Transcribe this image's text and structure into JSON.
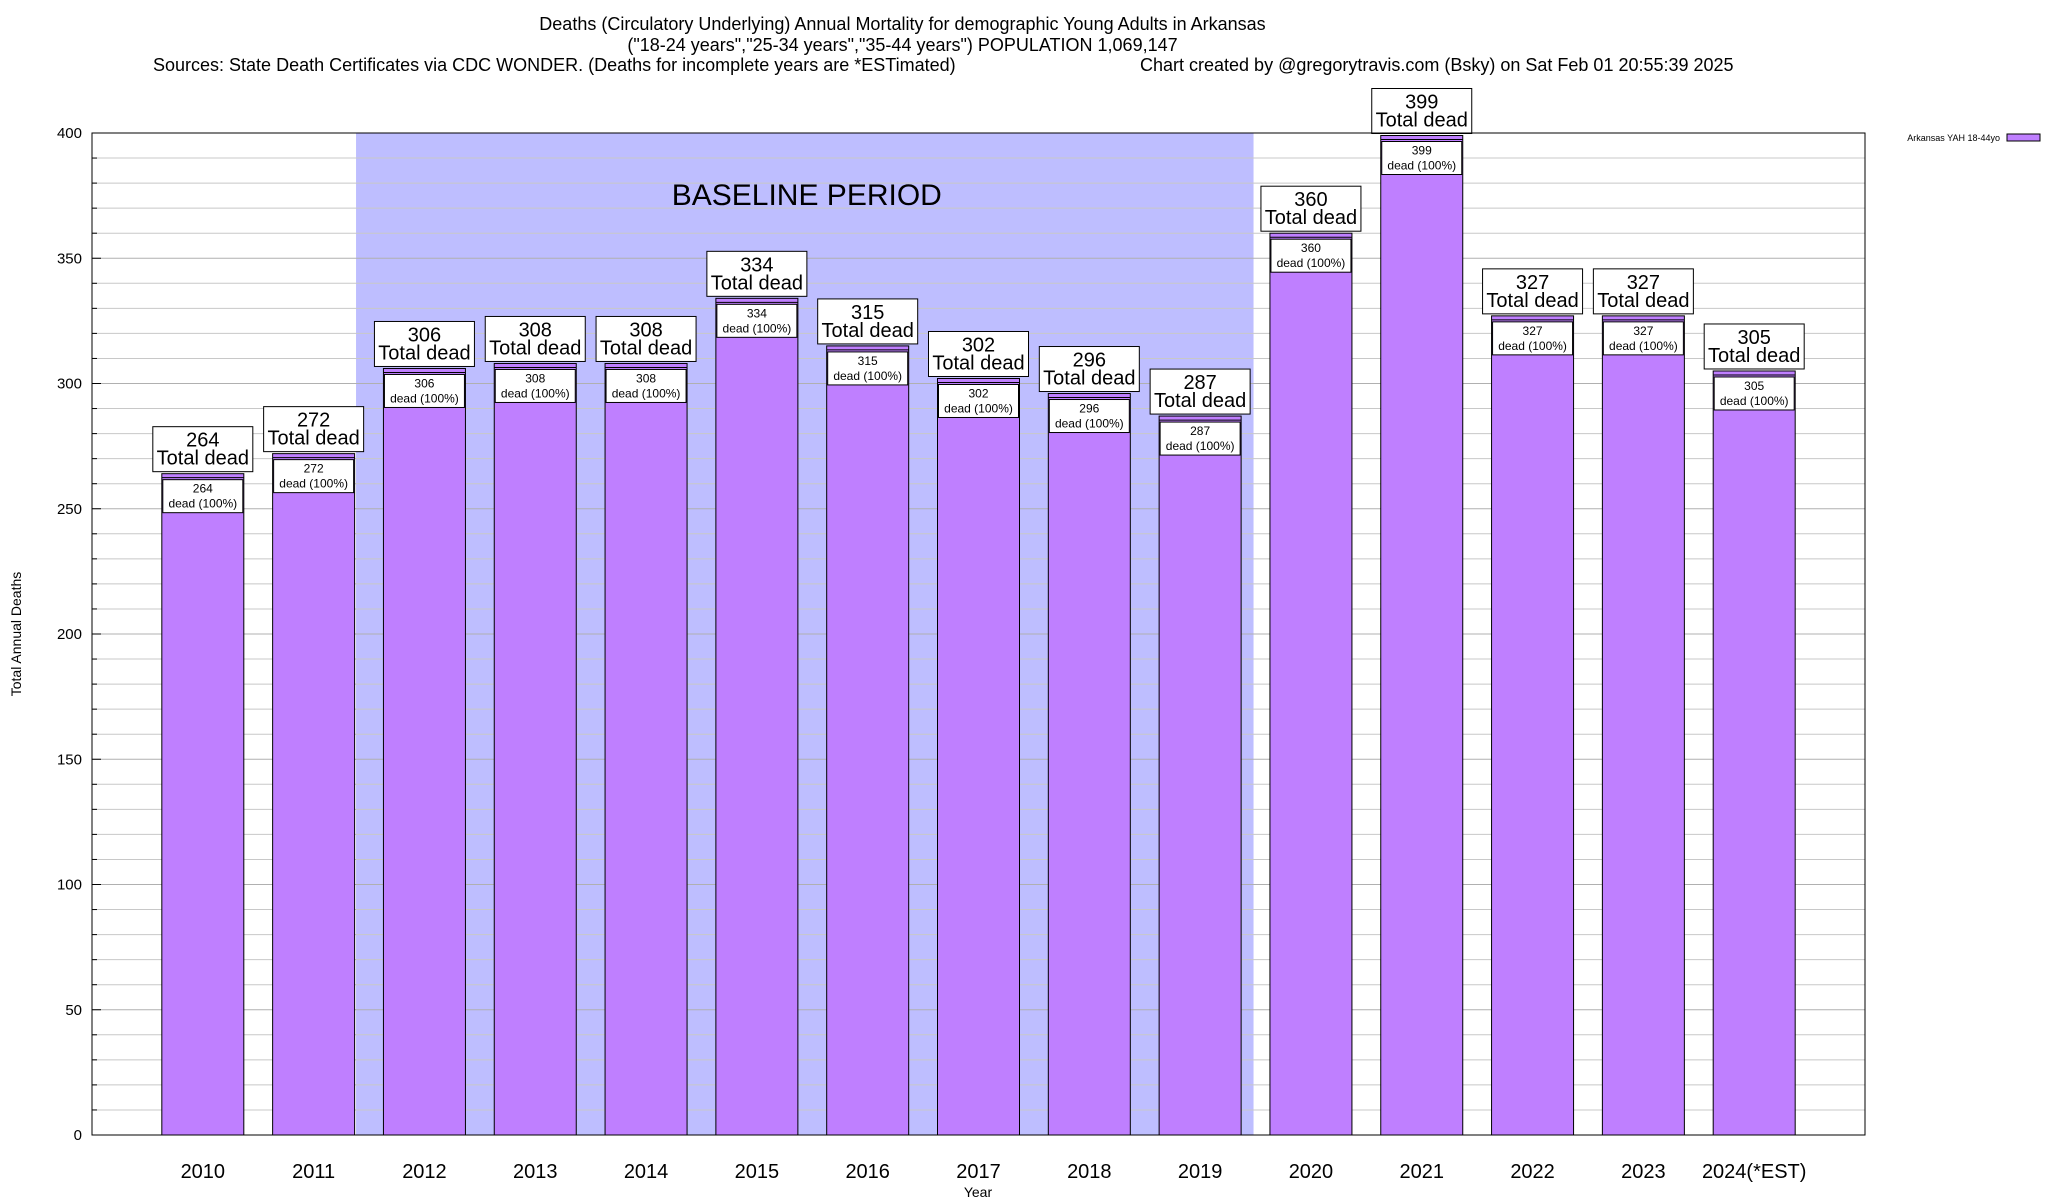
{
  "header": {
    "title_line1": "Deaths (Circulatory Underlying) Annual Mortality for demographic Young Adults in Arkansas",
    "title_line2": "(\"18-24 years\",\"25-34 years\",\"35-44 years\") POPULATION 1,069,147",
    "sources": "Sources: State Death Certificates via CDC WONDER. (Deaths for incomplete years are *ESTimated)",
    "credit": "Chart created by @gregorytravis.com (Bsky) on Sat Feb 01 20:55:39 2025"
  },
  "legend": {
    "label": "Arkansas YAH 18-44yo"
  },
  "colors": {
    "bar": "#bf7fff",
    "band": "#bebeff",
    "grid": "#c8c8c8"
  },
  "chart_data": {
    "type": "bar",
    "title": "Deaths (Circulatory Underlying) Annual Mortality for demographic Young Adults in Arkansas",
    "xlabel": "Year",
    "ylabel": "Total Annual Deaths",
    "ylim": [
      0,
      400
    ],
    "yticks": [
      0,
      50,
      100,
      150,
      200,
      250,
      300,
      350,
      400
    ],
    "grid": true,
    "legend_position": "top-right",
    "categories": [
      "2010",
      "2011",
      "2012",
      "2013",
      "2014",
      "2015",
      "2016",
      "2017",
      "2018",
      "2019",
      "2020",
      "2021",
      "2022",
      "2023",
      "2024(*EST)"
    ],
    "series": [
      {
        "name": "Arkansas YAH 18-44yo",
        "values": [
          264,
          272,
          306,
          308,
          308,
          334,
          315,
          302,
          296,
          287,
          360,
          399,
          327,
          327,
          305
        ]
      }
    ],
    "total_label_suffix": "Total dead",
    "inner_label_suffix": "dead (100%)",
    "baseline_period": {
      "label": "BASELINE PERIOD",
      "from": "2012",
      "to": "2019"
    }
  }
}
